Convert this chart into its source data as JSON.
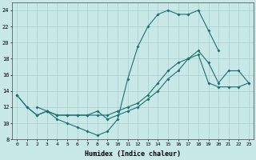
{
  "xlabel": "Humidex (Indice chaleur)",
  "background_color": "#c8e8e8",
  "grid_color": "#aacccc",
  "line_color": "#1a7070",
  "xlim": [
    -0.5,
    23.5
  ],
  "ylim": [
    8,
    25
  ],
  "xticks": [
    0,
    1,
    2,
    3,
    4,
    5,
    6,
    7,
    8,
    9,
    10,
    11,
    12,
    13,
    14,
    15,
    16,
    17,
    18,
    19,
    20,
    21,
    22,
    23
  ],
  "yticks": [
    8,
    10,
    12,
    14,
    16,
    18,
    20,
    22,
    24
  ],
  "line1_x": [
    0,
    1,
    2,
    3,
    3,
    4,
    5,
    6,
    7,
    8,
    9,
    10,
    11,
    12,
    13,
    14,
    15,
    16,
    17,
    18,
    19,
    20,
    21,
    22,
    23
  ],
  "line1_y": [
    13.5,
    12,
    11,
    11.5,
    11.5,
    11,
    11,
    11,
    11,
    11,
    11,
    11.5,
    12,
    12.5,
    13.5,
    15,
    16.5,
    17.5,
    18,
    18.5,
    15,
    14.5,
    14.5,
    14.5,
    15
  ],
  "line2_x": [
    0,
    1,
    2,
    3,
    4,
    5,
    6,
    7,
    8,
    9,
    10,
    11,
    12,
    13,
    14,
    15,
    16,
    17,
    18,
    19,
    20
  ],
  "line2_y": [
    13.5,
    12,
    11,
    11.5,
    10.5,
    10,
    9.5,
    9,
    8.5,
    9,
    10.5,
    15.5,
    19.5,
    22,
    23.5,
    24,
    23.5,
    23.5,
    24,
    21.5,
    19
  ],
  "line3_x": [
    2,
    3,
    4,
    5,
    6,
    7,
    8,
    9,
    10,
    11,
    12,
    13,
    14,
    15,
    16,
    17,
    18,
    19,
    20,
    21,
    22,
    23
  ],
  "line3_y": [
    12,
    11.5,
    11,
    11,
    11,
    11,
    11.5,
    10.5,
    11,
    11.5,
    12,
    13,
    14,
    15.5,
    16.5,
    18,
    19,
    17.5,
    15,
    16.5,
    16.5,
    15
  ]
}
